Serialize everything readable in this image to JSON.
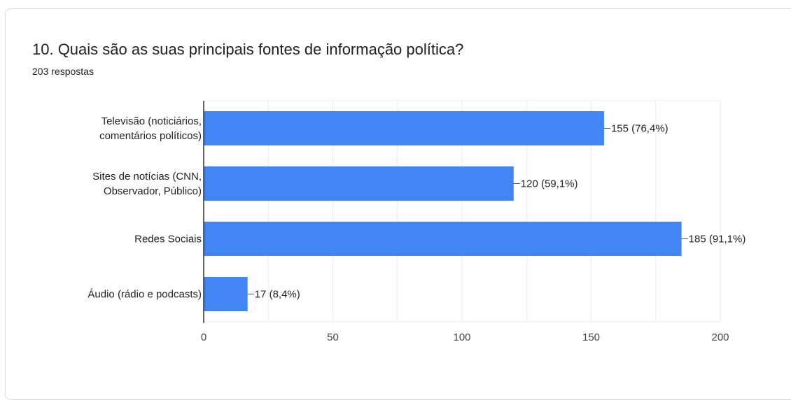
{
  "question": {
    "title": "10. Quais são as suas principais fontes de informação política?",
    "responses": "203 respostas"
  },
  "colors": {
    "bar": "#4285f4",
    "grid": "#ebebeb",
    "axis": "#333333",
    "text": "#222222"
  },
  "chart_data": {
    "type": "bar",
    "orientation": "horizontal",
    "categories": [
      [
        "Televisão (noticiários,",
        "comentários políticos)"
      ],
      [
        "Sites de notícias (CNN,",
        "Observador, Público)"
      ],
      [
        "Redes Sociais"
      ],
      [
        "Áudio (rádio e podcasts)"
      ]
    ],
    "values": [
      155,
      120,
      185,
      17
    ],
    "data_labels": [
      "155 (76,4%)",
      "120 (59,1%)",
      "185 (91,1%)",
      "17 (8,4%)"
    ],
    "xlim": [
      0,
      200
    ],
    "xticks": [
      0,
      50,
      100,
      150,
      200
    ],
    "grid": true,
    "title": "",
    "xlabel": "",
    "ylabel": ""
  }
}
